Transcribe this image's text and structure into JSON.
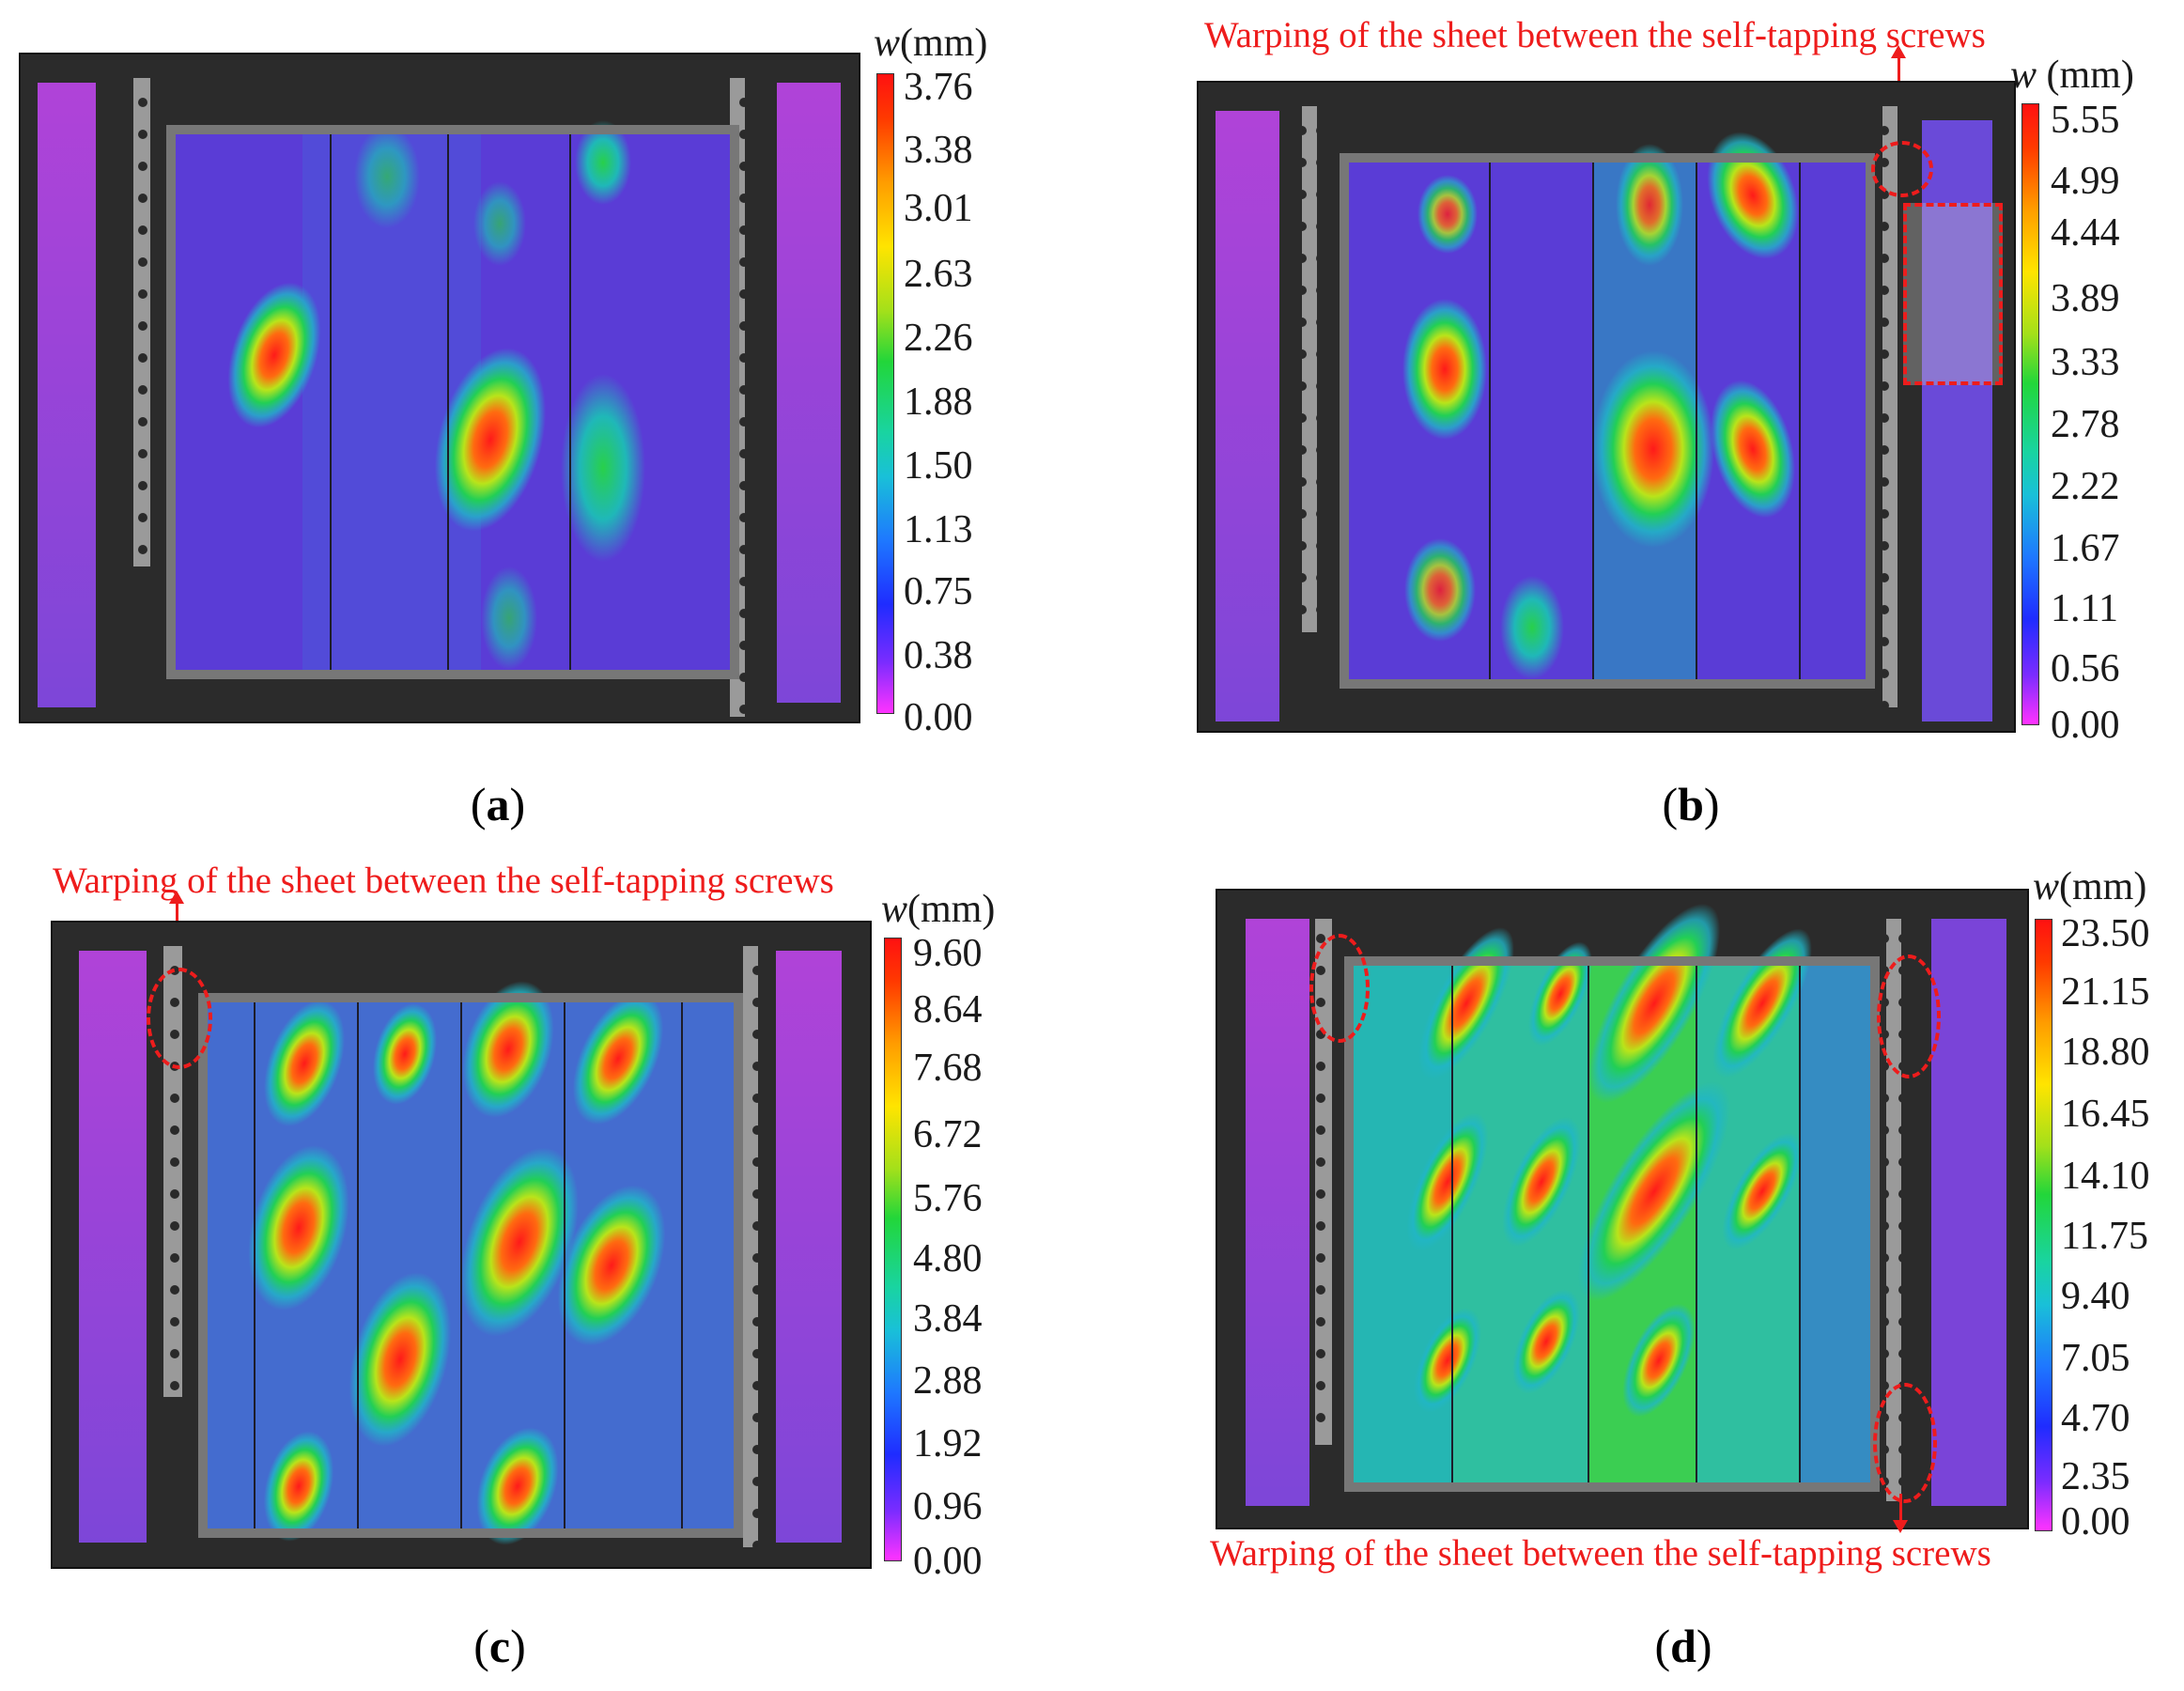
{
  "panels": [
    {
      "id": "a",
      "caption_label": "a",
      "unit_symbol": "w",
      "unit_text": "(mm)",
      "scale_ticks": [
        "3.76",
        "3.38",
        "3.01",
        "2.63",
        "2.26",
        "1.88",
        "1.50",
        "1.13",
        "0.75",
        "0.38",
        "0.00"
      ],
      "annotation": ""
    },
    {
      "id": "b",
      "caption_label": "b",
      "unit_symbol": "w",
      "unit_text": " (mm)",
      "scale_ticks": [
        "5.55",
        "4.99",
        "4.44",
        "3.89",
        "3.33",
        "2.78",
        "2.22",
        "1.67",
        "1.11",
        "0.56",
        "0.00"
      ],
      "annotation": "Warping of the sheet between the self-tapping screws"
    },
    {
      "id": "c",
      "caption_label": "c",
      "unit_symbol": "w",
      "unit_text": "(mm)",
      "scale_ticks": [
        "9.60",
        "8.64",
        "7.68",
        "6.72",
        "5.76",
        "4.80",
        "3.84",
        "2.88",
        "1.92",
        "0.96",
        "0.00"
      ],
      "annotation": "Warping of the sheet between the self-tapping screws"
    },
    {
      "id": "d",
      "caption_label": "d",
      "unit_symbol": "w",
      "unit_text": "(mm)",
      "scale_ticks": [
        "23.50",
        "21.15",
        "18.80",
        "16.45",
        "14.10",
        "11.75",
        "9.40",
        "7.05",
        "4.70",
        "2.35",
        "0.00"
      ],
      "annotation": "Warping of the sheet between the self-tapping screws"
    }
  ],
  "colors": {
    "annotation": "#ee1c1c",
    "scale_max": "#ff1111",
    "scale_min": "#ff33ff",
    "base_field": "#5a3cd6"
  }
}
